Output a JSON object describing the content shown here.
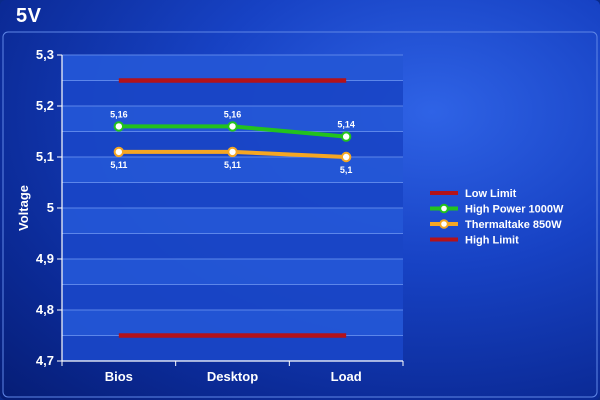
{
  "title": "5V",
  "chart_data": {
    "type": "line",
    "categories": [
      "Bios",
      "Desktop",
      "Load"
    ],
    "ylabel": "Voltage",
    "ylim": [
      4.7,
      5.3
    ],
    "yticks": [
      "4,7",
      "4,8",
      "4,9",
      "5",
      "5,1",
      "5,2",
      "5,3"
    ],
    "series": [
      {
        "name": "Low Limit",
        "values": [
          5.25,
          5.25,
          5.25
        ],
        "color": "#b3121a",
        "markers": false,
        "labels": null
      },
      {
        "name": "High Power 1000W",
        "values": [
          5.16,
          5.16,
          5.14
        ],
        "color": "#22c21e",
        "markers": true,
        "labels": [
          "5,16",
          "5,16",
          "5,14"
        ],
        "label_pos": "above"
      },
      {
        "name": "Thermaltake 850W",
        "values": [
          5.11,
          5.11,
          5.1
        ],
        "color": "#f5a623",
        "markers": true,
        "labels": [
          "5,11",
          "5,11",
          "5,1"
        ],
        "label_pos": "below"
      },
      {
        "name": "High Limit",
        "values": [
          4.75,
          4.75,
          4.75
        ],
        "color": "#b3121a",
        "markers": false,
        "labels": null
      }
    ],
    "legend_position": "right",
    "grid": true
  }
}
